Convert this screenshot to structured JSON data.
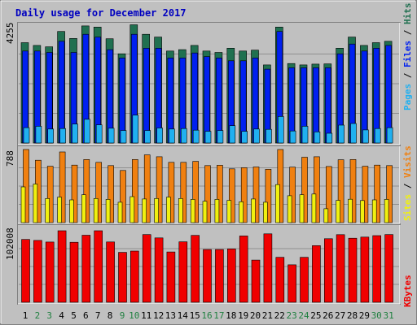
{
  "title": "Daily usage for December 2017",
  "colors": {
    "background": "#c0c0c0",
    "title": "#0000c0",
    "hits": "#207050",
    "pages": "#20b0f0",
    "files": "#0020f0",
    "visits": "#f08010",
    "sites": "#f0f010",
    "kbytes": "#f00000",
    "weekday_label": "#000000",
    "weekend_label": "#208040",
    "gridline": "#808080"
  },
  "panels": {
    "top": {
      "max_label": "4255",
      "legend": [
        {
          "text": "Pages",
          "color": "#20b0f0"
        },
        {
          "text": " / ",
          "color": "#000000"
        },
        {
          "text": "Files",
          "color": "#0020f0"
        },
        {
          "text": " / ",
          "color": "#000000"
        },
        {
          "text": "Hits",
          "color": "#207050"
        }
      ]
    },
    "middle": {
      "max_label": "788",
      "legend": [
        {
          "text": "Sites",
          "color": "#f0f010"
        },
        {
          "text": " / ",
          "color": "#000000"
        },
        {
          "text": "Visits",
          "color": "#f08010"
        }
      ]
    },
    "bottom": {
      "max_label": "102008",
      "legend": [
        {
          "text": "KBytes",
          "color": "#f00000"
        }
      ]
    }
  },
  "chart_data": [
    {
      "type": "bar",
      "categories": [
        "1",
        "2",
        "3",
        "4",
        "5",
        "6",
        "7",
        "8",
        "9",
        "10",
        "11",
        "12",
        "13",
        "14",
        "15",
        "16",
        "17",
        "18",
        "19",
        "20",
        "21",
        "22",
        "23",
        "24",
        "25",
        "26",
        "27",
        "28",
        "29",
        "30",
        "31"
      ],
      "weekend_days": [
        "2",
        "3",
        "9",
        "10",
        "16",
        "17",
        "23",
        "24",
        "30",
        "31"
      ],
      "ylim": [
        0,
        4255
      ],
      "series": [
        {
          "name": "Hits",
          "values": [
            3600,
            3500,
            3450,
            4000,
            3750,
            4200,
            4160,
            3740,
            3200,
            4240,
            3900,
            3800,
            3300,
            3350,
            3500,
            3300,
            3250,
            3400,
            3300,
            3330,
            2800,
            4160,
            2850,
            2800,
            2830,
            2840,
            3400,
            3800,
            3500,
            3600,
            3650
          ]
        },
        {
          "name": "Files",
          "values": [
            3300,
            3300,
            3250,
            3650,
            3250,
            3900,
            3800,
            3350,
            3050,
            3900,
            3400,
            3400,
            3050,
            3050,
            3230,
            3100,
            3050,
            2950,
            2950,
            3050,
            2650,
            4000,
            2700,
            2700,
            2700,
            2700,
            3200,
            3550,
            3300,
            3400,
            3500
          ]
        },
        {
          "name": "Pages",
          "values": [
            550,
            600,
            500,
            520,
            680,
            850,
            650,
            530,
            450,
            1000,
            450,
            540,
            500,
            520,
            460,
            420,
            450,
            620,
            420,
            500,
            490,
            950,
            430,
            600,
            400,
            350,
            640,
            700,
            470,
            520,
            550
          ]
        }
      ]
    },
    {
      "type": "bar",
      "categories": [
        "1",
        "2",
        "3",
        "4",
        "5",
        "6",
        "7",
        "8",
        "9",
        "10",
        "11",
        "12",
        "13",
        "14",
        "15",
        "16",
        "17",
        "18",
        "19",
        "20",
        "21",
        "22",
        "23",
        "24",
        "25",
        "26",
        "27",
        "28",
        "29",
        "30",
        "31"
      ],
      "ylim": [
        0,
        788
      ],
      "series": [
        {
          "name": "Visits",
          "values": [
            788,
            672,
            608,
            762,
            620,
            680,
            650,
            615,
            562,
            680,
            730,
            710,
            650,
            650,
            660,
            615,
            618,
            580,
            592,
            600,
            575,
            788,
            598,
            705,
            710,
            605,
            678,
            680,
            608,
            620,
            615
          ]
        },
        {
          "name": "Sites",
          "values": [
            385,
            416,
            260,
            275,
            245,
            300,
            260,
            250,
            220,
            280,
            255,
            260,
            275,
            260,
            250,
            230,
            250,
            240,
            225,
            255,
            220,
            410,
            290,
            300,
            308,
            150,
            240,
            252,
            238,
            245,
            250
          ]
        }
      ]
    },
    {
      "type": "bar",
      "categories": [
        "1",
        "2",
        "3",
        "4",
        "5",
        "6",
        "7",
        "8",
        "9",
        "10",
        "11",
        "12",
        "13",
        "14",
        "15",
        "16",
        "17",
        "18",
        "19",
        "20",
        "21",
        "22",
        "23",
        "24",
        "25",
        "26",
        "27",
        "28",
        "29",
        "30",
        "31"
      ],
      "ylim": [
        0,
        102008
      ],
      "series": [
        {
          "name": "KBytes",
          "values": [
            89600,
            88200,
            85900,
            102008,
            85600,
            95600,
            102008,
            86000,
            71200,
            73000,
            96600,
            91800,
            71800,
            86200,
            95400,
            75200,
            75200,
            76000,
            94600,
            60200,
            97600,
            64100,
            53400,
            64100,
            80800,
            90700,
            96400,
            91400,
            93000,
            95000,
            96600
          ]
        }
      ]
    }
  ]
}
